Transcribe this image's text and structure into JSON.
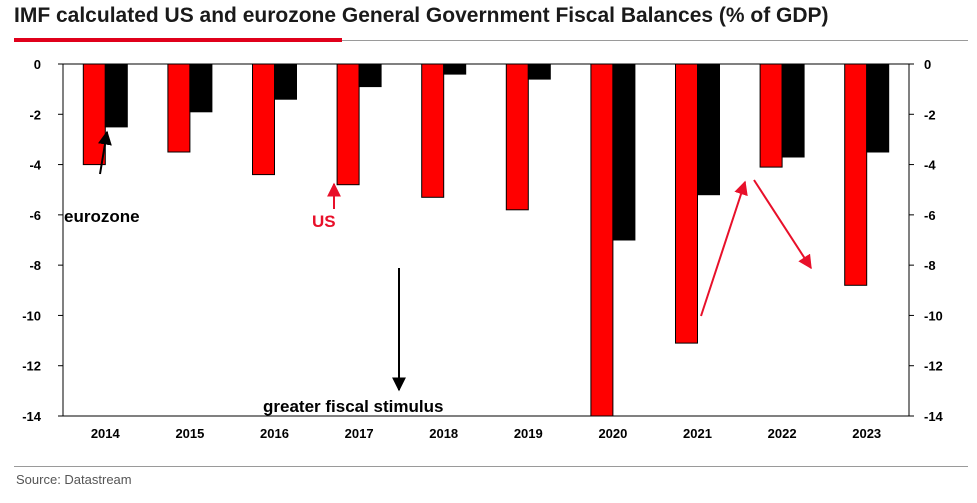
{
  "title": "IMF calculated US and eurozone General Government Fiscal Balances (% of GDP)",
  "source": "Source: Datastream",
  "colors": {
    "accent": "#e0001b",
    "us": "#ff0000",
    "eurozone": "#000000",
    "annotation_red": "#e8102a"
  },
  "chart_data": {
    "type": "bar",
    "categories": [
      "2014",
      "2015",
      "2016",
      "2017",
      "2018",
      "2019",
      "2020",
      "2021",
      "2022",
      "2023"
    ],
    "series": [
      {
        "name": "US",
        "color": "#ff0000",
        "values": [
          -4.0,
          -3.5,
          -4.4,
          -4.8,
          -5.3,
          -5.8,
          -14.0,
          -11.1,
          -4.1,
          -8.8
        ]
      },
      {
        "name": "eurozone",
        "color": "#000000",
        "values": [
          -2.5,
          -1.9,
          -1.4,
          -0.9,
          -0.4,
          -0.6,
          -7.0,
          -5.2,
          -3.7,
          -3.5
        ]
      }
    ],
    "ylim": [
      -14,
      0
    ],
    "yticks": [
      0,
      -2,
      -4,
      -6,
      -8,
      -10,
      -12,
      -14
    ],
    "right_axis": true,
    "grid": false,
    "annotations": [
      {
        "text": "eurozone",
        "color": "#000000"
      },
      {
        "text": "US",
        "color": "#e8102a"
      },
      {
        "text": "greater fiscal stimulus",
        "color": "#000000"
      }
    ]
  }
}
